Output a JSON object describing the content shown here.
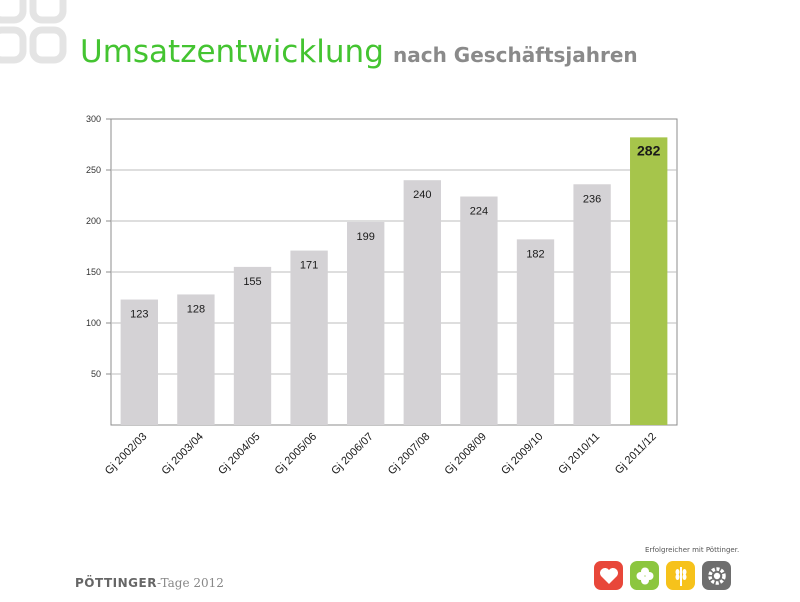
{
  "slide": {
    "title_main": "Umsatzentwicklung",
    "title_sub": "nach Geschäftsjahren",
    "footer_brand": "PÖTTINGER",
    "footer_suffix": "-Tage 2012",
    "tagline": "Erfolgreicher mit Pöttinger.",
    "colors": {
      "title_green": "#44c431",
      "bar_gray": "#d4d2d5",
      "bar_highlight": "#a6c54b"
    },
    "icons": [
      "heart-icon",
      "clover-icon",
      "wheat-icon",
      "gear-icon"
    ]
  },
  "chart_data": {
    "type": "bar",
    "categories": [
      "Gj 2002/03",
      "Gj 2003/04",
      "Gj 2004/05",
      "Gj 2005/06",
      "Gj 2006/07",
      "Gj 2007/08",
      "Gj 2008/09",
      "Gj 2009/10",
      "Gj 2010/11",
      "Gj 2011/12"
    ],
    "values": [
      123,
      128,
      155,
      171,
      199,
      240,
      224,
      182,
      236,
      282
    ],
    "highlight_index": 9,
    "ylim": [
      0,
      300
    ],
    "yticks": [
      50,
      100,
      150,
      200,
      250,
      300
    ],
    "ytick_labels": [
      "50",
      "100",
      "150",
      "200",
      "250",
      "300"
    ],
    "grid": true,
    "data_labels": true,
    "legend": false
  }
}
